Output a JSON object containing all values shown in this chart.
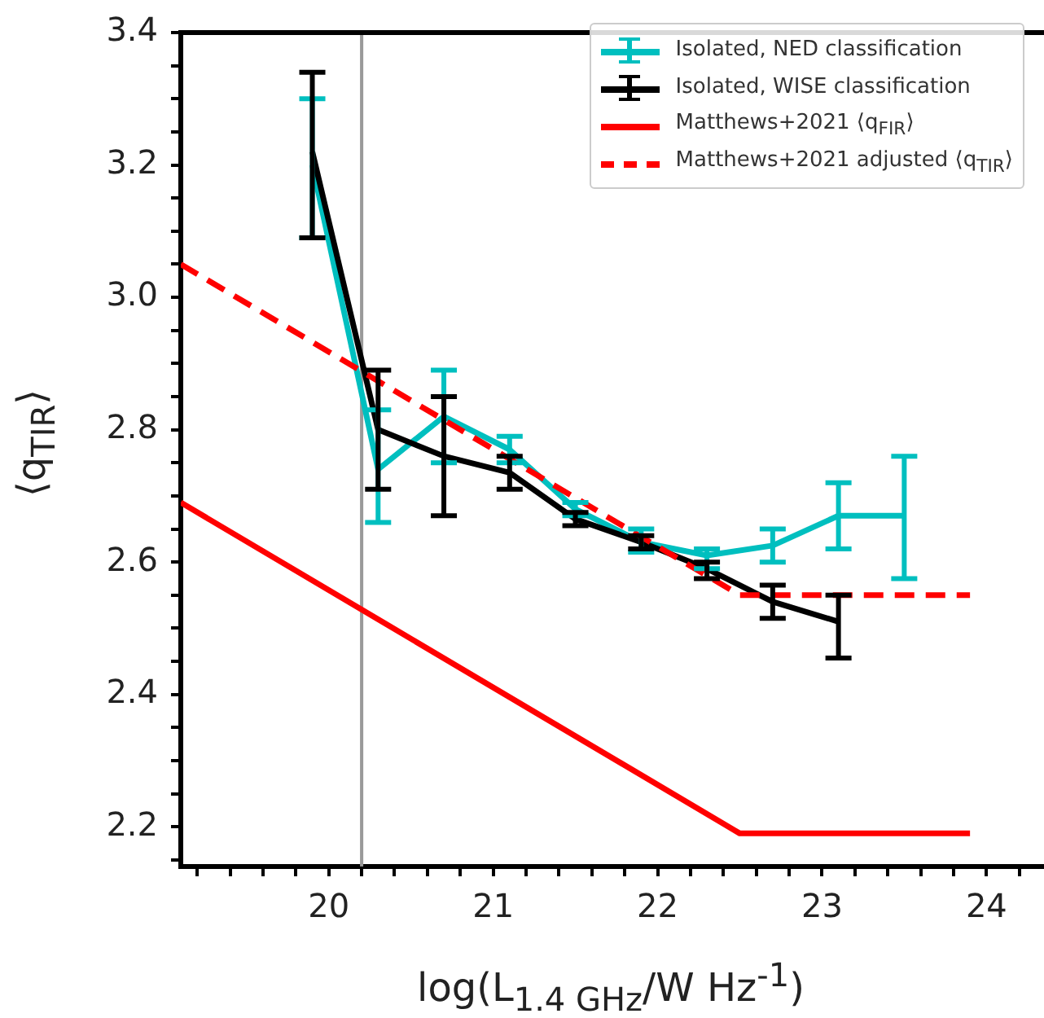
{
  "chart_data": {
    "type": "line",
    "xlabel": "log(L$_{1.4 GHz}$/W Hz$^{-1}$)",
    "ylabel": "⟨q$_{TIR}$⟩",
    "xlim": [
      19.1,
      24.35
    ],
    "ylim": [
      2.14,
      3.4
    ],
    "xticks": [
      {
        "value": 19.2,
        "label": null
      },
      {
        "value": 19.4,
        "label": null
      },
      {
        "value": 19.6,
        "label": null
      },
      {
        "value": 19.8,
        "label": null
      },
      20,
      {
        "value": 20.2,
        "label": null
      },
      {
        "value": 20.4,
        "label": null
      },
      {
        "value": 20.6,
        "label": null
      },
      {
        "value": 20.8,
        "label": null
      },
      21,
      {
        "value": 21.2,
        "label": null
      },
      {
        "value": 21.4,
        "label": null
      },
      {
        "value": 21.6,
        "label": null
      },
      {
        "value": 21.8,
        "label": null
      },
      22,
      {
        "value": 22.2,
        "label": null
      },
      {
        "value": 22.4,
        "label": null
      },
      {
        "value": 22.6,
        "label": null
      },
      {
        "value": 22.8,
        "label": null
      },
      23,
      {
        "value": 23.2,
        "label": null
      },
      {
        "value": 23.4,
        "label": null
      },
      {
        "value": 23.6,
        "label": null
      },
      {
        "value": 23.8,
        "label": null
      },
      24,
      {
        "value": 24.2,
        "label": null
      }
    ],
    "yticks": [
      {
        "value": 2.15,
        "label": null
      },
      2.2,
      {
        "value": 2.25,
        "label": null
      },
      {
        "value": 2.3,
        "label": null
      },
      {
        "value": 2.35,
        "label": null
      },
      2.4,
      {
        "value": 2.45,
        "label": null
      },
      {
        "value": 2.5,
        "label": null
      },
      {
        "value": 2.55,
        "label": null
      },
      2.6,
      {
        "value": 2.65,
        "label": null
      },
      {
        "value": 2.7,
        "label": null
      },
      {
        "value": 2.75,
        "label": null
      },
      2.8,
      {
        "value": 2.85,
        "label": null
      },
      {
        "value": 2.9,
        "label": null
      },
      {
        "value": 2.95,
        "label": null
      },
      {
        "value": 3,
        "label": "3.0"
      },
      {
        "value": 3.05,
        "label": null
      },
      {
        "value": 3.1,
        "label": null
      },
      {
        "value": 3.15,
        "label": null
      },
      3.2,
      {
        "value": 3.25,
        "label": null
      },
      {
        "value": 3.3,
        "label": null
      },
      {
        "value": 3.35,
        "label": null
      },
      3.4
    ],
    "grid": false,
    "legend": "top right",
    "marker": "none",
    "ref_lines": [
      {
        "axis": "x",
        "value": 20.2,
        "color": "#999999"
      }
    ],
    "series": [
      {
        "name": "Isolated, NED classification",
        "color": "#00bfbf",
        "x": [
          19.9,
          20.3,
          20.7,
          21.1,
          21.5,
          21.9,
          22.3,
          22.7,
          23.1,
          23.5
        ],
        "values": [
          3.2,
          2.74,
          2.82,
          2.77,
          2.68,
          2.63,
          2.61,
          2.625,
          2.67,
          2.67
        ],
        "errors": [
          [
            3.09,
            3.3
          ],
          [
            2.66,
            2.83
          ],
          [
            2.75,
            2.89
          ],
          [
            2.75,
            2.79
          ],
          [
            2.67,
            2.69
          ],
          [
            2.615,
            2.65
          ],
          [
            2.59,
            2.62
          ],
          [
            2.6,
            2.65
          ],
          [
            2.62,
            2.72
          ],
          [
            2.575,
            2.76
          ]
        ]
      },
      {
        "name": "Isolated, WISE classification",
        "color": "#000000",
        "x": [
          19.9,
          20.3,
          20.7,
          21.1,
          21.5,
          21.9,
          22.3,
          22.7,
          23.1
        ],
        "values": [
          3.22,
          2.8,
          2.76,
          2.735,
          2.665,
          2.63,
          2.59,
          2.54,
          2.51
        ],
        "errors": [
          [
            3.09,
            3.34
          ],
          [
            2.71,
            2.89
          ],
          [
            2.67,
            2.85
          ],
          [
            2.71,
            2.76
          ],
          [
            2.655,
            2.675
          ],
          [
            2.62,
            2.64
          ],
          [
            2.575,
            2.6
          ],
          [
            2.515,
            2.565
          ],
          [
            2.455,
            2.55
          ]
        ]
      },
      {
        "name": "Matthews+2021 ⟨q$_{FIR}$⟩",
        "color": "#ff0000",
        "x": [
          19.1,
          22.5,
          23.9
        ],
        "values": [
          2.69,
          2.19,
          2.19
        ],
        "line_style": "solid"
      },
      {
        "name": "Matthews+2021 adjusted ⟨q$_{TIR}$⟩",
        "color": "#ff0000",
        "x": [
          19.1,
          22.5,
          23.9
        ],
        "values": [
          3.05,
          2.55,
          2.55
        ],
        "line_style": "dashed"
      }
    ]
  }
}
